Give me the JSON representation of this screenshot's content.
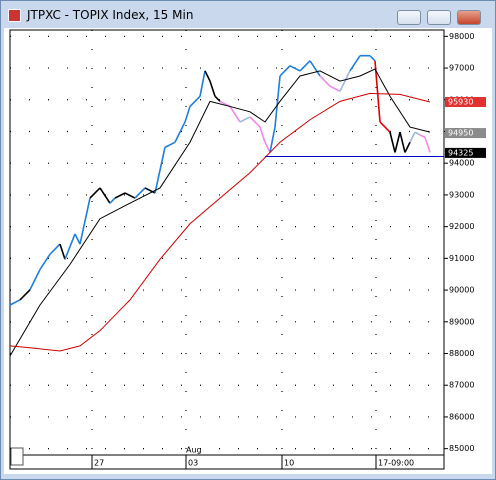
{
  "window_title": "JTPXC - TOPIX Index, 15 Min",
  "chart_data": {
    "type": "line",
    "annotation": "Aug",
    "xlim": [
      0,
      86.8
    ],
    "xticks": [
      {
        "value": 16.4,
        "label": "27"
      },
      {
        "value": 35.2,
        "label": "03"
      },
      {
        "value": 54.4,
        "label": "10"
      },
      {
        "value": 73.2,
        "label": "17-09:00"
      }
    ],
    "ylim": [
      84800,
      98200
    ],
    "yticks": [
      85000,
      86000,
      87000,
      88000,
      89000,
      90000,
      91000,
      92000,
      93000,
      94000,
      95000,
      96000,
      97000,
      98000
    ],
    "grid": true,
    "series": [
      {
        "color": "#1e7fd8",
        "x": [
          0,
          2,
          4,
          6,
          8,
          10,
          11,
          13,
          14,
          16,
          18,
          20,
          21,
          23,
          25,
          27,
          29,
          31,
          33,
          35,
          36,
          38,
          39,
          40,
          41,
          42,
          44,
          46,
          48,
          50,
          51,
          52,
          53,
          54,
          56,
          58,
          60,
          62,
          64,
          66,
          68,
          70,
          72,
          73,
          74,
          76,
          77,
          78,
          79,
          80,
          81,
          82,
          83,
          84
        ],
        "values": [
          89530,
          89690,
          90010,
          90650,
          91130,
          91450,
          90970,
          91770,
          91450,
          92900,
          93220,
          92740,
          92900,
          93060,
          92900,
          93220,
          93060,
          94500,
          94660,
          95300,
          95790,
          96110,
          96910,
          96590,
          96110,
          95950,
          95790,
          95300,
          95460,
          95140,
          94660,
          94340,
          95140,
          96750,
          97070,
          96910,
          97230,
          96750,
          96430,
          96270,
          96910,
          97390,
          97390,
          97230,
          95300,
          94980,
          94340,
          94980,
          94340,
          94660,
          94980,
          94890,
          94820,
          94340
        ],
        "point_colors": [
          "#1e7fd8",
          "#1e7fd8",
          "#000000",
          "#1e7fd8",
          "#1e7fd8",
          "#1e7fd8",
          "#000000",
          "#1e7fd8",
          "#1e7fd8",
          "#1e7fd8",
          "#000000",
          "#000000",
          "#1e7fd8",
          "#000000",
          "#000000",
          "#1e7fd8",
          "#000000",
          "#1e7fd8",
          "#1e7fd8",
          "#1e7fd8",
          "#1e7fd8",
          "#1e7fd8",
          "#1e7fd8",
          "#000000",
          "#000000",
          "#000000",
          "#ee88ee",
          "#ee88ee",
          "#a0b8e0",
          "#ee88ee",
          "#ee88ee",
          "#ee88ee",
          "#1e7fd8",
          "#1e7fd8",
          "#1e7fd8",
          "#1e7fd8",
          "#1e7fd8",
          "#1e7fd8",
          "#ee88ee",
          "#ee88ee",
          "#a0b8e0",
          "#1e7fd8",
          "#1e7fd8",
          "#1e7fd8",
          "#e00000",
          "#e00000",
          "#000000",
          "#000000",
          "#000000",
          "#000000",
          "#a0b8e0",
          "#a0b8e0",
          "#ee88ee",
          "#ee88ee"
        ]
      },
      {
        "color": "#000000",
        "x": [
          0,
          6,
          12,
          18,
          24,
          30,
          36,
          40,
          44,
          48,
          51,
          54,
          58,
          62,
          66,
          70,
          73,
          76,
          80,
          84
        ],
        "values": [
          87920,
          89530,
          90810,
          92250,
          92740,
          93220,
          94660,
          95950,
          95790,
          95620,
          95300,
          95950,
          96750,
          96910,
          96590,
          96750,
          96970,
          96110,
          95140,
          94980
        ]
      },
      {
        "color": "#cc0000",
        "x": [
          0,
          4,
          10,
          14,
          18,
          24,
          30,
          36,
          42,
          48,
          54,
          60,
          66,
          72,
          78,
          84
        ],
        "values": [
          88240,
          88180,
          88080,
          88240,
          88720,
          89690,
          90970,
          92090,
          92900,
          93700,
          94660,
          95370,
          95950,
          96200,
          96170,
          95930
        ]
      },
      {
        "color": "#0000cc",
        "x": [
          51,
          86.8
        ],
        "values": [
          94210,
          94210
        ]
      }
    ],
    "price_labels": [
      {
        "value": 95930,
        "label": "95930",
        "color": "#e03030"
      },
      {
        "value": 94950,
        "label": "94950",
        "color": "#8a8a8a"
      },
      {
        "value": 94325,
        "label": "94325",
        "color": "#000000"
      }
    ]
  }
}
